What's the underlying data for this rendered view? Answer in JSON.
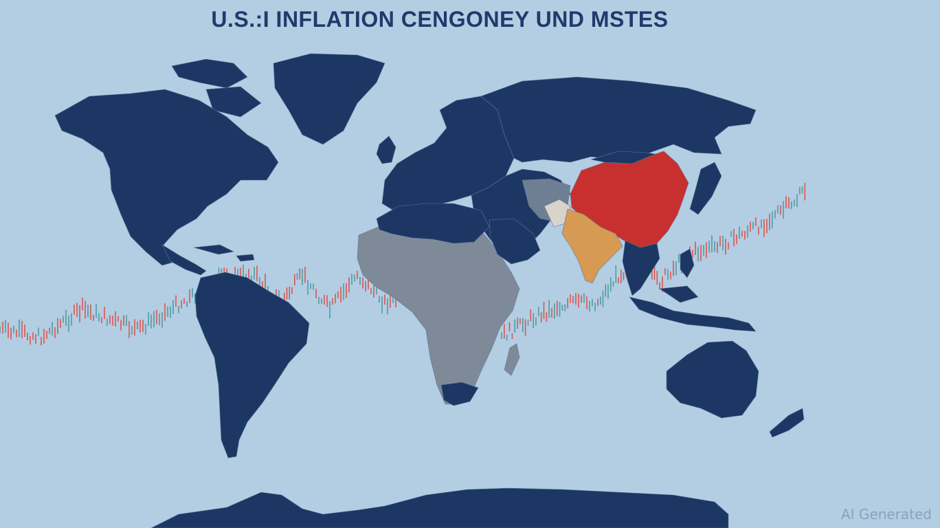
{
  "title": "U.S.:I INFLATION CENGONEY UND MSTES",
  "watermark": "AI Generated",
  "colors": {
    "ocean": "#b3cde3",
    "land_default": "#1d3765",
    "africa_gray": "#7f8a99",
    "highlight_china": "#c8302f",
    "highlight_india": "#d69a52",
    "pale": "#d8d4c9",
    "candle_up": "#4f9da0",
    "candle_down": "#d9574d",
    "title": "#1f3a6b"
  },
  "regions": [
    {
      "name": "north-america",
      "color_key": "land_default"
    },
    {
      "name": "greenland",
      "color_key": "land_default"
    },
    {
      "name": "south-america",
      "color_key": "land_default"
    },
    {
      "name": "europe",
      "color_key": "land_default"
    },
    {
      "name": "russia",
      "color_key": "land_default"
    },
    {
      "name": "middle-east",
      "color_key": "land_default"
    },
    {
      "name": "africa",
      "color_key": "africa_gray"
    },
    {
      "name": "china",
      "color_key": "highlight_china"
    },
    {
      "name": "india",
      "color_key": "highlight_india"
    },
    {
      "name": "southeast-asia",
      "color_key": "land_default"
    },
    {
      "name": "australia",
      "color_key": "land_default"
    },
    {
      "name": "antarctica",
      "color_key": "land_default"
    }
  ]
}
